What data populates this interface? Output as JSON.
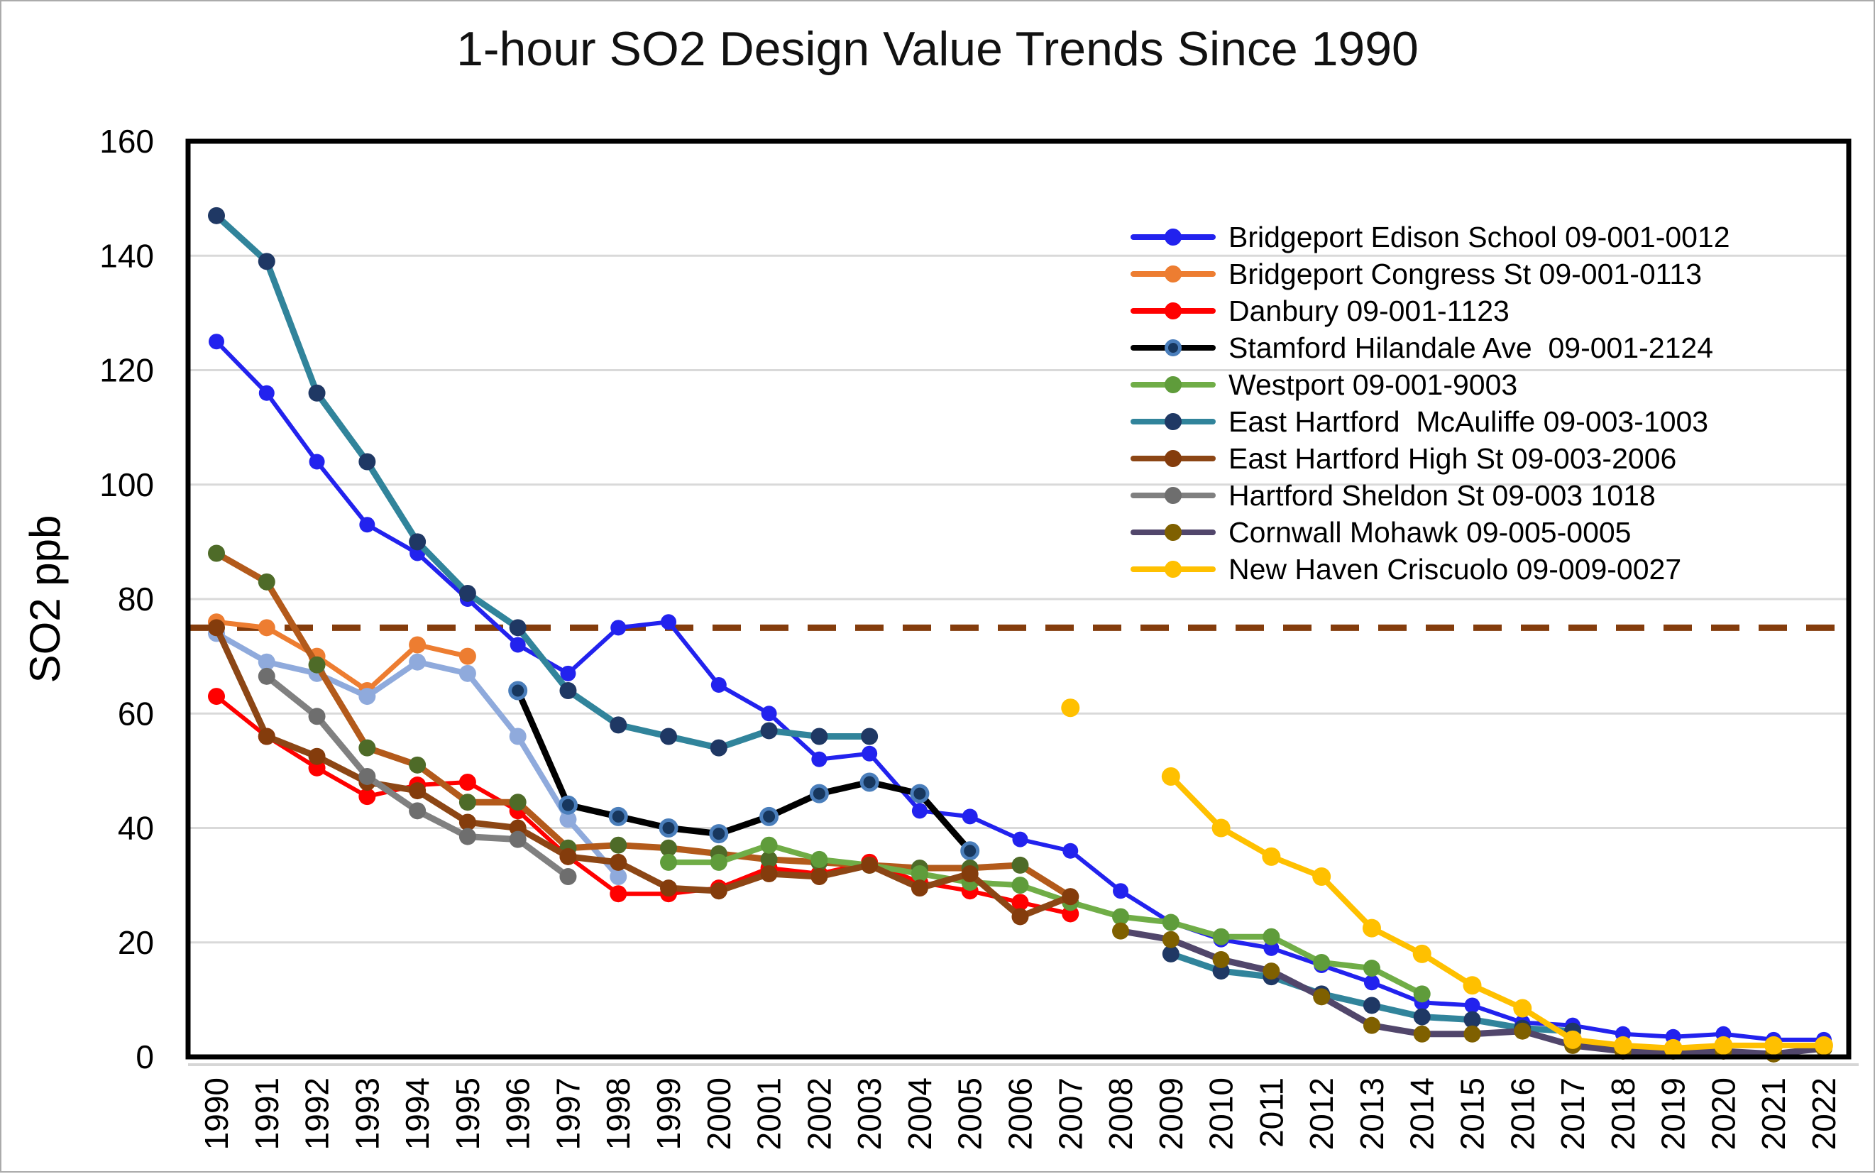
{
  "title": "1-hour SO2 Design Value Trends Since 1990",
  "chart_data": {
    "type": "line",
    "title": "1-hour SO2 Design Value Trends Since 1990",
    "xlabel": "",
    "ylabel": "SO2 ppb",
    "ylim": [
      0,
      160
    ],
    "ytick_step": 20,
    "x_range": [
      1990,
      2022
    ],
    "grid": true,
    "legend_position": "upper-right-inside",
    "background": "#ffffff",
    "gridline_color": "#d9d9d9",
    "axis_box_color": "#000000",
    "reference_line": {
      "value": 75,
      "color": "#843c0c",
      "style": "dashed"
    },
    "series": [
      {
        "name": "Bridgeport Edison School 09-001-0012",
        "in_legend": true,
        "line_color": "#2222ee",
        "marker_color": "#2222ee",
        "line_width": 6,
        "marker_radius": 11,
        "points": [
          [
            1990,
            125
          ],
          [
            1991,
            116
          ],
          [
            1992,
            104
          ],
          [
            1993,
            93
          ],
          [
            1994,
            88
          ],
          [
            1995,
            80
          ],
          [
            1996,
            72
          ],
          [
            1997,
            67
          ],
          [
            1998,
            75
          ],
          [
            1999,
            76
          ],
          [
            2000,
            65
          ],
          [
            2001,
            60
          ],
          [
            2002,
            52
          ],
          [
            2003,
            53
          ],
          [
            2004,
            43
          ],
          [
            2005,
            42
          ],
          [
            2006,
            38
          ],
          [
            2007,
            36
          ],
          [
            2008,
            29
          ],
          [
            2009,
            23.5
          ],
          [
            2010,
            20.5
          ],
          [
            2011,
            19
          ],
          [
            2012,
            16
          ],
          [
            2013,
            13
          ],
          [
            2014,
            9.5
          ],
          [
            2015,
            9
          ],
          [
            2016,
            6
          ],
          [
            2017,
            5.5
          ],
          [
            2018,
            4
          ],
          [
            2019,
            3.5
          ],
          [
            2020,
            4
          ],
          [
            2021,
            3
          ],
          [
            2022,
            3
          ]
        ]
      },
      {
        "name": "Bridgeport Congress St 09-001-0113",
        "in_legend": true,
        "line_color": "#ed7d31",
        "marker_color": "#ed7d31",
        "line_width": 7,
        "marker_radius": 12,
        "points": [
          [
            1990,
            76
          ],
          [
            1991,
            75
          ],
          [
            1992,
            70
          ],
          [
            1993,
            64
          ],
          [
            1994,
            72
          ],
          [
            1995,
            70
          ]
        ]
      },
      {
        "name": "Danbury 09-001-1123",
        "in_legend": true,
        "line_color": "#ff0000",
        "marker_color": "#ff0000",
        "line_width": 6,
        "marker_radius": 12,
        "points": [
          [
            1990,
            63
          ],
          [
            1991,
            56
          ],
          [
            1992,
            50.5
          ],
          [
            1993,
            45.5
          ],
          [
            1994,
            47.5
          ],
          [
            1995,
            48
          ],
          [
            1996,
            43
          ],
          [
            1997,
            35
          ],
          [
            1998,
            28.5
          ],
          [
            1999,
            28.5
          ],
          [
            2000,
            29.5
          ],
          [
            2001,
            33
          ],
          [
            2002,
            32
          ],
          [
            2003,
            34
          ],
          [
            2004,
            30.5
          ],
          [
            2005,
            29
          ],
          [
            2006,
            27
          ],
          [
            2007,
            25
          ]
        ]
      },
      {
        "name": "unlabeled-light-blue-series",
        "in_legend": false,
        "line_color": "#8faadc",
        "marker_color": "#8faadc",
        "line_width": 8,
        "marker_radius": 12,
        "points": [
          [
            1990,
            74
          ],
          [
            1991,
            69
          ],
          [
            1992,
            67
          ],
          [
            1993,
            63
          ],
          [
            1994,
            69
          ],
          [
            1995,
            67
          ],
          [
            1996,
            56
          ],
          [
            1997,
            41.5
          ],
          [
            1998,
            31.5
          ]
        ]
      },
      {
        "name": "Stamford Hilandale Ave  09-001-2124",
        "in_legend": true,
        "line_color": "#000000",
        "marker_color": "#17375e",
        "marker_outline": "#4a7ebb",
        "line_width": 9,
        "marker_radius": 11,
        "points": [
          [
            1996,
            64
          ],
          [
            1997,
            44
          ],
          [
            1998,
            42
          ],
          [
            1999,
            40
          ],
          [
            2000,
            39
          ],
          [
            2001,
            42
          ],
          [
            2002,
            46
          ],
          [
            2003,
            48
          ],
          [
            2004,
            46
          ],
          [
            2005,
            36
          ]
        ]
      },
      {
        "name": "unlabeled-brown-line-green-marker-series",
        "in_legend": false,
        "line_color": "#b35a1b",
        "marker_color": "#4e6b28",
        "line_width": 9,
        "marker_radius": 12,
        "points": [
          [
            1990,
            88
          ],
          [
            1991,
            83
          ],
          [
            1992,
            68.5
          ],
          [
            1993,
            54
          ],
          [
            1994,
            51
          ],
          [
            1995,
            44.5
          ],
          [
            1996,
            44.5
          ],
          [
            1997,
            36.5
          ],
          [
            1998,
            37
          ],
          [
            1999,
            36.5
          ],
          [
            2000,
            35.5
          ],
          [
            2001,
            34.5
          ],
          [
            2002,
            34
          ],
          [
            2003,
            33.5
          ],
          [
            2004,
            33
          ],
          [
            2005,
            33
          ],
          [
            2006,
            33.5
          ],
          [
            2007,
            28
          ]
        ]
      },
      {
        "name": "Westport 09-001-9003",
        "in_legend": true,
        "line_color": "#70ad47",
        "marker_color": "#5f9c3b",
        "line_width": 8,
        "marker_radius": 12,
        "points": [
          [
            1999,
            34
          ],
          [
            2000,
            34
          ],
          [
            2001,
            37
          ],
          [
            2002,
            34.5
          ],
          [
            2003,
            33.5
          ],
          [
            2004,
            32
          ],
          [
            2005,
            30.5
          ],
          [
            2006,
            30
          ],
          [
            2007,
            27
          ],
          [
            2008,
            24.5
          ],
          [
            2009,
            23.5
          ],
          [
            2010,
            21
          ],
          [
            2011,
            21
          ],
          [
            2012,
            16.5
          ],
          [
            2013,
            15.5
          ],
          [
            2014,
            11
          ]
        ]
      },
      {
        "name": "East Hartford  McAuliffe 09-003-1003",
        "in_legend": true,
        "line_color": "#31849b",
        "marker_color": "#1f3864",
        "line_width": 9,
        "marker_radius": 12,
        "points": [
          [
            1990,
            147
          ],
          [
            1991,
            139
          ],
          [
            1992,
            116
          ],
          [
            1993,
            104
          ],
          [
            1994,
            90
          ],
          [
            1995,
            81
          ],
          [
            1996,
            75
          ],
          [
            1997,
            64
          ],
          [
            1998,
            58
          ],
          [
            1999,
            56
          ],
          [
            2000,
            54
          ],
          [
            2001,
            57
          ],
          [
            2002,
            56
          ],
          [
            2003,
            56
          ],
          [
            2009,
            18
          ],
          [
            2010,
            15
          ],
          [
            2011,
            14
          ],
          [
            2012,
            11
          ],
          [
            2013,
            9
          ],
          [
            2014,
            7
          ],
          [
            2015,
            6.5
          ],
          [
            2016,
            5
          ],
          [
            2017,
            4.5
          ]
        ]
      },
      {
        "name": "East Hartford High St 09-003-2006",
        "in_legend": true,
        "line_color": "#8c4615",
        "marker_color": "#843c0c",
        "line_width": 9,
        "marker_radius": 12,
        "points": [
          [
            1990,
            75
          ],
          [
            1991,
            56
          ],
          [
            1992,
            52.5
          ],
          [
            1993,
            48
          ],
          [
            1994,
            46.5
          ],
          [
            1995,
            41
          ],
          [
            1996,
            40
          ],
          [
            1997,
            35
          ],
          [
            1998,
            34
          ],
          [
            1999,
            29.5
          ],
          [
            2000,
            29
          ],
          [
            2001,
            32
          ],
          [
            2002,
            31.5
          ],
          [
            2003,
            33.5
          ],
          [
            2004,
            29.5
          ],
          [
            2005,
            32
          ],
          [
            2006,
            24.5
          ],
          [
            2007,
            28
          ]
        ]
      },
      {
        "name": "Hartford Sheldon St 09-003 1018",
        "in_legend": true,
        "line_color": "#808080",
        "marker_color": "#6e6e6e",
        "line_width": 9,
        "marker_radius": 12,
        "points": [
          [
            1991,
            66.5
          ],
          [
            1992,
            59.5
          ],
          [
            1993,
            49
          ],
          [
            1994,
            43
          ],
          [
            1995,
            38.5
          ],
          [
            1996,
            38
          ],
          [
            1997,
            31.5
          ]
        ]
      },
      {
        "name": "Cornwall Mohawk 09-005-0005",
        "in_legend": true,
        "line_color": "#51466b",
        "marker_color": "#7f6000",
        "line_width": 9,
        "marker_radius": 12,
        "points": [
          [
            2008,
            22
          ],
          [
            2009,
            20.5
          ],
          [
            2010,
            17
          ],
          [
            2011,
            15
          ],
          [
            2012,
            10.5
          ],
          [
            2013,
            5.5
          ],
          [
            2014,
            4
          ],
          [
            2015,
            4
          ],
          [
            2016,
            4.5
          ],
          [
            2017,
            2
          ],
          [
            2018,
            1
          ],
          [
            2019,
            1
          ],
          [
            2020,
            1
          ],
          [
            2021,
            0.5
          ],
          [
            2022,
            1.5
          ]
        ]
      },
      {
        "name": "New Haven Criscuolo 09-009-0027",
        "in_legend": true,
        "line_color": "#ffc000",
        "marker_color": "#ffc000",
        "line_width": 8,
        "marker_radius": 13,
        "points": [
          [
            2007,
            61
          ],
          [
            2009,
            49
          ],
          [
            2010,
            40
          ],
          [
            2011,
            35
          ],
          [
            2012,
            31.5
          ],
          [
            2013,
            22.5
          ],
          [
            2014,
            18
          ],
          [
            2015,
            12.5
          ],
          [
            2016,
            8.5
          ],
          [
            2017,
            3
          ],
          [
            2018,
            2
          ],
          [
            2019,
            1.5
          ],
          [
            2020,
            2
          ],
          [
            2021,
            2
          ],
          [
            2022,
            2
          ]
        ]
      }
    ]
  }
}
